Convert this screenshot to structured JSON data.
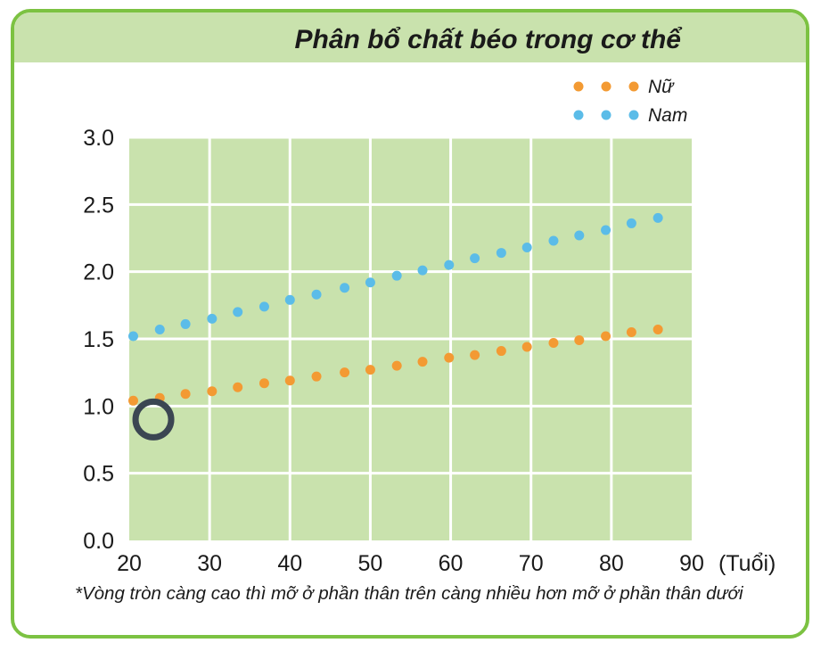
{
  "chart_data": {
    "type": "scatter",
    "title": "Phân bổ chất béo trong cơ thể",
    "xlabel": "(Tuổi)",
    "ylabel": "",
    "xlim": [
      20,
      90
    ],
    "ylim": [
      0.0,
      3.0
    ],
    "x_ticks": [
      "20",
      "30",
      "40",
      "50",
      "60",
      "70",
      "80",
      "90"
    ],
    "y_ticks": [
      "0.0",
      "0.5",
      "1.0",
      "1.5",
      "2.0",
      "2.5",
      "3.0"
    ],
    "grid": true,
    "legend_position": "top-right",
    "series": [
      {
        "name": "Nữ",
        "color": "#f39a33",
        "points": [
          [
            20.5,
            1.04
          ],
          [
            23.8,
            1.06
          ],
          [
            27.0,
            1.09
          ],
          [
            30.3,
            1.11
          ],
          [
            33.5,
            1.14
          ],
          [
            36.8,
            1.17
          ],
          [
            40.0,
            1.19
          ],
          [
            43.3,
            1.22
          ],
          [
            46.8,
            1.25
          ],
          [
            50.0,
            1.27
          ],
          [
            53.3,
            1.3
          ],
          [
            56.5,
            1.33
          ],
          [
            59.8,
            1.36
          ],
          [
            63.0,
            1.38
          ],
          [
            66.3,
            1.41
          ],
          [
            69.5,
            1.44
          ],
          [
            72.8,
            1.47
          ],
          [
            76.0,
            1.49
          ],
          [
            79.3,
            1.52
          ],
          [
            82.5,
            1.55
          ],
          [
            85.8,
            1.57
          ]
        ]
      },
      {
        "name": "Nam",
        "color": "#5bbce8",
        "points": [
          [
            20.5,
            1.52
          ],
          [
            23.8,
            1.57
          ],
          [
            27.0,
            1.61
          ],
          [
            30.3,
            1.65
          ],
          [
            33.5,
            1.7
          ],
          [
            36.8,
            1.74
          ],
          [
            40.0,
            1.79
          ],
          [
            43.3,
            1.83
          ],
          [
            46.8,
            1.88
          ],
          [
            50.0,
            1.92
          ],
          [
            53.3,
            1.97
          ],
          [
            56.5,
            2.01
          ],
          [
            59.8,
            2.05
          ],
          [
            63.0,
            2.1
          ],
          [
            66.3,
            2.14
          ],
          [
            69.5,
            2.18
          ],
          [
            72.8,
            2.23
          ],
          [
            76.0,
            2.27
          ],
          [
            79.3,
            2.31
          ],
          [
            82.5,
            2.36
          ],
          [
            85.8,
            2.4
          ]
        ]
      }
    ],
    "marker": {
      "x": 23.0,
      "y": 0.9,
      "color": "#3b4652"
    }
  },
  "note": "*Vòng tròn càng cao thì mỡ ở phần thân trên càng nhiều hơn mỡ ở phần thân dưới",
  "colors": {
    "frame_border": "#7cc242",
    "title_bar": "#c9e2ad",
    "plot_background": "#c9e2ad",
    "grid": "#ffffff"
  }
}
